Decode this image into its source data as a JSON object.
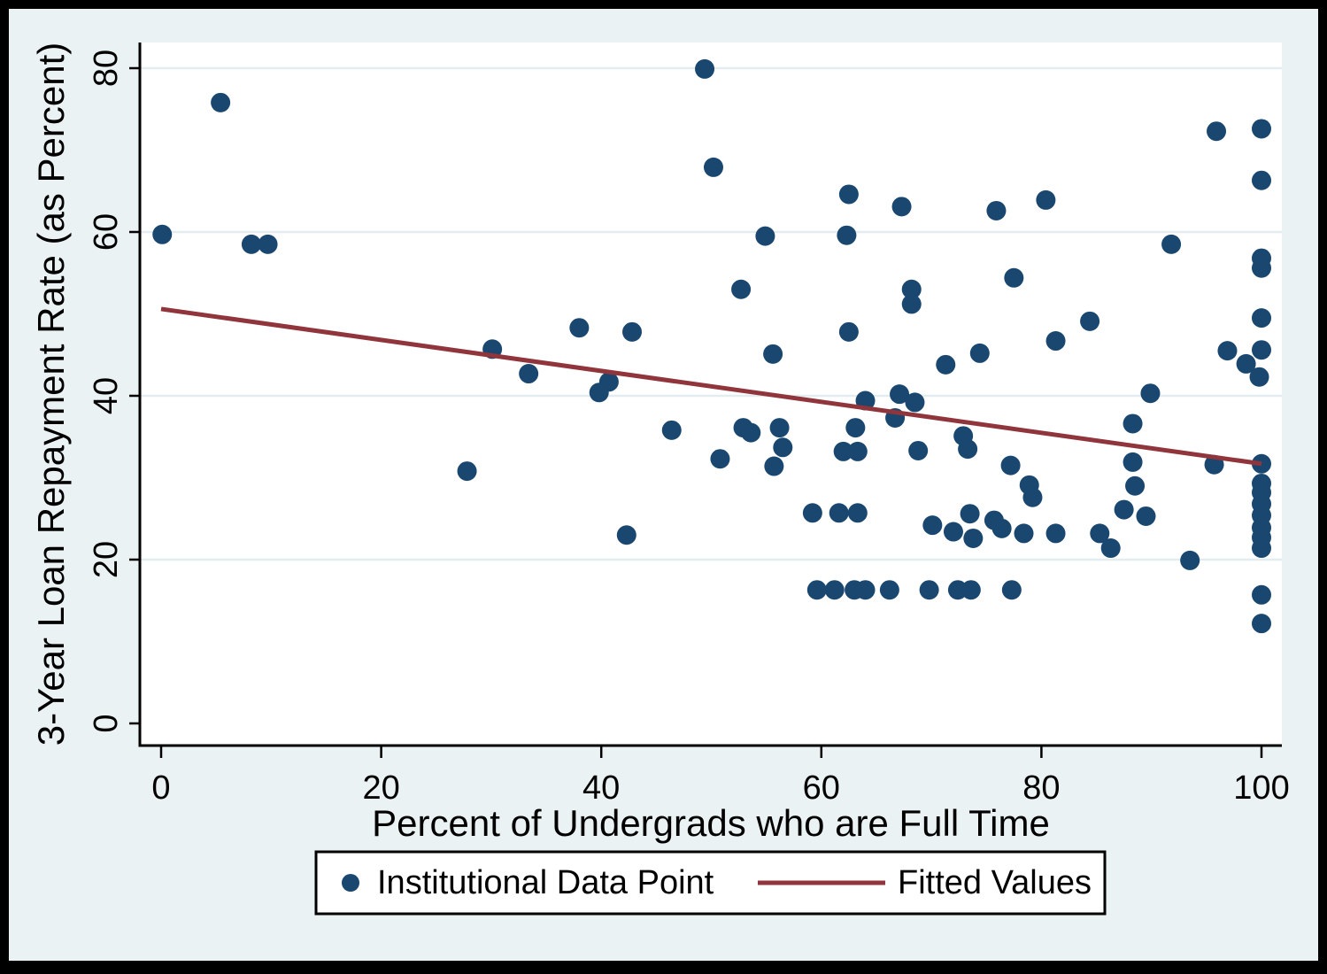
{
  "figure": {
    "background": "#eaf2f3",
    "plot_background": "#ffffff",
    "frame_color": "#000000",
    "grid_color": "#e3edef",
    "axis_color": "#000000"
  },
  "chart_data": {
    "type": "scatter",
    "title": "",
    "xlabel": "Percent of Undergrads who are Full Time",
    "ylabel": "3-Year Loan Repayment Rate (as Percent)",
    "xlim": [
      0,
      100
    ],
    "ylim": [
      0,
      80
    ],
    "x_ticks": [
      0,
      20,
      40,
      60,
      80,
      100
    ],
    "y_ticks": [
      0,
      20,
      40,
      60,
      80
    ],
    "grid": "horizontal-only",
    "legend_position": "bottom-center",
    "series": [
      {
        "name": "Institutional Data Point",
        "type": "scatter",
        "color": "#1a476f",
        "marker": "circle",
        "points": [
          [
            0.1,
            59.7
          ],
          [
            5.4,
            75.8
          ],
          [
            8.2,
            58.5
          ],
          [
            9.7,
            58.5
          ],
          [
            27.8,
            30.8
          ],
          [
            30.1,
            45.7
          ],
          [
            33.4,
            42.7
          ],
          [
            38.0,
            48.3
          ],
          [
            39.8,
            40.4
          ],
          [
            40.7,
            41.7
          ],
          [
            42.3,
            23.0
          ],
          [
            42.8,
            47.8
          ],
          [
            46.4,
            35.8
          ],
          [
            49.4,
            79.9
          ],
          [
            50.2,
            67.9
          ],
          [
            50.8,
            32.3
          ],
          [
            52.7,
            53.0
          ],
          [
            52.9,
            36.1
          ],
          [
            53.6,
            35.5
          ],
          [
            54.9,
            59.5
          ],
          [
            55.6,
            45.1
          ],
          [
            55.7,
            31.4
          ],
          [
            56.2,
            36.1
          ],
          [
            56.5,
            33.7
          ],
          [
            59.2,
            25.7
          ],
          [
            59.6,
            16.3
          ],
          [
            61.2,
            16.3
          ],
          [
            61.6,
            25.7
          ],
          [
            62.0,
            33.2
          ],
          [
            62.3,
            59.6
          ],
          [
            62.5,
            64.6
          ],
          [
            62.5,
            47.8
          ],
          [
            63.0,
            16.3
          ],
          [
            63.1,
            36.1
          ],
          [
            63.3,
            33.2
          ],
          [
            63.3,
            25.7
          ],
          [
            64.0,
            16.3
          ],
          [
            64.0,
            39.4
          ],
          [
            66.2,
            16.3
          ],
          [
            66.7,
            37.3
          ],
          [
            67.1,
            40.2
          ],
          [
            67.3,
            63.1
          ],
          [
            68.2,
            53.0
          ],
          [
            68.2,
            51.2
          ],
          [
            68.5,
            39.2
          ],
          [
            68.8,
            33.3
          ],
          [
            69.8,
            16.3
          ],
          [
            70.1,
            24.2
          ],
          [
            71.3,
            43.8
          ],
          [
            72.0,
            23.4
          ],
          [
            72.4,
            16.3
          ],
          [
            72.9,
            35.1
          ],
          [
            73.3,
            33.5
          ],
          [
            73.5,
            25.6
          ],
          [
            73.6,
            16.3
          ],
          [
            73.8,
            22.6
          ],
          [
            74.4,
            45.2
          ],
          [
            75.7,
            24.8
          ],
          [
            75.9,
            62.6
          ],
          [
            76.4,
            23.8
          ],
          [
            77.2,
            31.5
          ],
          [
            77.3,
            16.3
          ],
          [
            77.5,
            54.4
          ],
          [
            78.4,
            23.2
          ],
          [
            78.9,
            29.1
          ],
          [
            79.2,
            27.6
          ],
          [
            80.4,
            63.9
          ],
          [
            81.3,
            46.7
          ],
          [
            81.3,
            23.2
          ],
          [
            84.4,
            49.1
          ],
          [
            85.3,
            23.2
          ],
          [
            86.3,
            21.4
          ],
          [
            87.5,
            26.1
          ],
          [
            88.3,
            36.6
          ],
          [
            88.3,
            31.9
          ],
          [
            88.5,
            29.0
          ],
          [
            89.5,
            25.3
          ],
          [
            89.9,
            40.3
          ],
          [
            91.8,
            58.5
          ],
          [
            93.5,
            19.9
          ],
          [
            95.7,
            31.6
          ],
          [
            95.9,
            72.3
          ],
          [
            96.9,
            45.5
          ],
          [
            98.6,
            43.9
          ],
          [
            99.8,
            42.3
          ],
          [
            100,
            72.6
          ],
          [
            100,
            66.3
          ],
          [
            100,
            56.8
          ],
          [
            100,
            55.6
          ],
          [
            100,
            49.5
          ],
          [
            100,
            45.6
          ],
          [
            100,
            31.7
          ],
          [
            100,
            29.3
          ],
          [
            100,
            28.2
          ],
          [
            100,
            26.8
          ],
          [
            100,
            25.4
          ],
          [
            100,
            23.9
          ],
          [
            100,
            22.7
          ],
          [
            100,
            21.4
          ],
          [
            100,
            15.7
          ],
          [
            100,
            12.2
          ]
        ]
      },
      {
        "name": "Fitted Values",
        "type": "line",
        "color": "#90353b",
        "points": [
          [
            0,
            50.6
          ],
          [
            100,
            31.7
          ]
        ]
      }
    ]
  },
  "legend": {
    "items": [
      {
        "label": "Institutional Data Point",
        "marker": "circle",
        "color": "#1a476f"
      },
      {
        "label": "Fitted Values",
        "marker": "line",
        "color": "#90353b"
      }
    ]
  }
}
